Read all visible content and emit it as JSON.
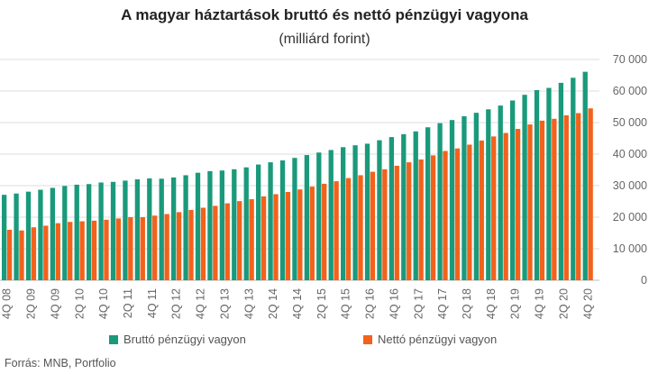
{
  "chart_data": {
    "type": "bar",
    "title": "A magyar háztartások bruttó és nettó pénzügyi vagyona",
    "subtitle": "(milliárd forint)",
    "ylim": [
      0,
      70000
    ],
    "yticks": [
      "0",
      "10 000",
      "20 000",
      "30 000",
      "40 000",
      "50 000",
      "60 000",
      "70 000"
    ],
    "grid": true,
    "legend_position": "bottom",
    "categories": [
      "4Q 08",
      "1Q 09",
      "2Q 09",
      "3Q 09",
      "4Q 09",
      "1Q 10",
      "2Q 10",
      "3Q 10",
      "4Q 10",
      "1Q 11",
      "2Q 11",
      "3Q 11",
      "4Q 11",
      "1Q 12",
      "2Q 12",
      "3Q 12",
      "4Q 12",
      "1Q 13",
      "2Q 13",
      "3Q 13",
      "4Q 13",
      "1Q 14",
      "2Q 14",
      "3Q 14",
      "4Q 14",
      "1Q 15",
      "2Q 15",
      "3Q 15",
      "4Q 15",
      "1Q 16",
      "2Q 16",
      "3Q 16",
      "4Q 16",
      "1Q 17",
      "2Q 17",
      "3Q 17",
      "4Q 17",
      "1Q 18",
      "2Q 18",
      "3Q 18",
      "4Q 18",
      "1Q 19",
      "2Q 19",
      "3Q 19",
      "4Q 19",
      "1Q 20",
      "2Q 20",
      "3Q 20",
      "4Q 20"
    ],
    "visible_tick_labels": [
      "4Q 08",
      "2Q 09",
      "4Q 09",
      "2Q 10",
      "4Q 10",
      "2Q 11",
      "4Q 11",
      "2Q 12",
      "4Q 12",
      "2Q 13",
      "4Q 13",
      "2Q 14",
      "4Q 14",
      "2Q 15",
      "4Q 15",
      "2Q 16",
      "4Q 16",
      "2Q 17",
      "4Q 17",
      "2Q 18",
      "4Q 18",
      "2Q 19",
      "4Q 19",
      "2Q 20",
      "4Q 20"
    ],
    "series": [
      {
        "name": "Bruttó pénzügyi vagyon",
        "color": "#1a9a7b",
        "values": [
          27100,
          27500,
          28100,
          28700,
          29300,
          29900,
          30300,
          30500,
          31000,
          31200,
          31600,
          32000,
          32300,
          32200,
          32600,
          33300,
          34100,
          34600,
          34800,
          35200,
          35800,
          36700,
          37400,
          38000,
          38800,
          39700,
          40500,
          41300,
          42200,
          42800,
          43300,
          44400,
          45400,
          46300,
          47200,
          48500,
          49800,
          50800,
          52000,
          53100,
          54200,
          55400,
          57000,
          58800,
          60300,
          61000,
          62600,
          64200,
          66100
        ]
      },
      {
        "name": "Nettó pénzügyi vagyon",
        "color": "#f2621c",
        "values": [
          16000,
          15800,
          16800,
          17300,
          18100,
          18500,
          18700,
          18900,
          19200,
          19600,
          20000,
          20000,
          20500,
          21000,
          21600,
          22300,
          23000,
          23600,
          24400,
          25100,
          25700,
          26600,
          27300,
          28000,
          28800,
          29700,
          30600,
          31400,
          32400,
          33300,
          34400,
          35200,
          36300,
          37400,
          38300,
          39600,
          41000,
          41800,
          43000,
          44300,
          45600,
          46700,
          48000,
          49400,
          50600,
          51200,
          52300,
          53000,
          54500
        ]
      }
    ]
  },
  "source": "Forrás: MNB, Portfolio"
}
